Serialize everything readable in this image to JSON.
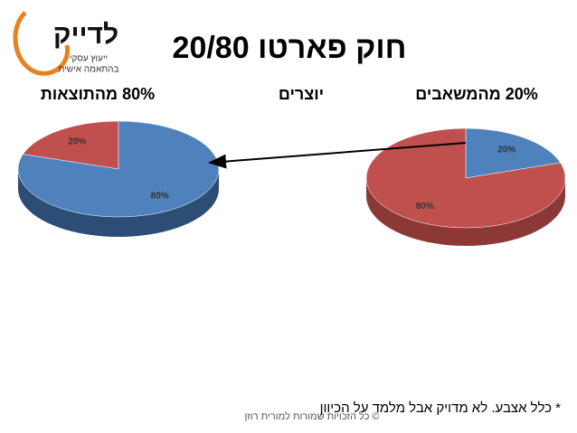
{
  "slide": {
    "title": "חוק פארטו 20/80",
    "connector": "יוצרים",
    "footnote": "* כלל אצבע. לא מדויק אבל מלמד על הכיוון",
    "copyright": "© כל הזכויות שמורות למורית רוזן",
    "logo": {
      "name": "לדייק",
      "line1": "ייעוץ עסקי",
      "line2": "בהתאמה אישית"
    }
  },
  "chart_data": [
    {
      "type": "pie",
      "title": "80% מהתוצאות",
      "values": [
        20,
        80
      ],
      "value_labels": [
        "20%",
        "80%"
      ],
      "colors": [
        "#c0504d",
        "#4f81bd"
      ],
      "side_colors": [
        "#8c3836",
        "#2c4d75"
      ]
    },
    {
      "type": "pie",
      "title": "20% מהמשאבים",
      "values": [
        20,
        80
      ],
      "value_labels": [
        "20%",
        "80%"
      ],
      "colors": [
        "#4f81bd",
        "#c0504d"
      ],
      "side_colors": [
        "#2c4d75",
        "#8c3836"
      ]
    }
  ]
}
